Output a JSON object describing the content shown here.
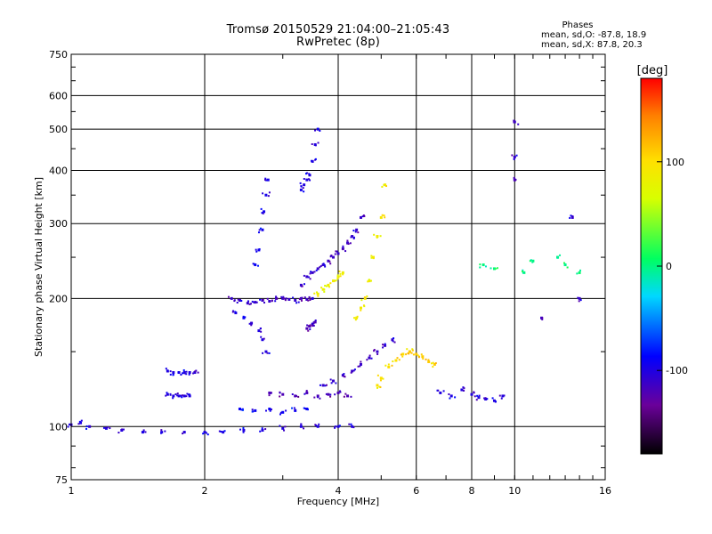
{
  "header": {
    "title": "Tromsø 20150529 21:04:00–21:05:43",
    "subtitle": "RwPretec (8p)"
  },
  "phases": {
    "heading": "Phases",
    "line_o": "mean, sd,O: -87.8, 18.9",
    "line_x": "mean, sd,X:  87.8, 20.3"
  },
  "colorbar": {
    "label": "[deg]",
    "ticks": [
      {
        "value": 100,
        "label": "100"
      },
      {
        "value": 0,
        "label": "0"
      },
      {
        "value": -100,
        "label": "-100"
      }
    ],
    "range": [
      -180,
      180
    ]
  },
  "chart_data": {
    "type": "scatter",
    "title": "Tromsø 20150529 21:04:00–21:05:43",
    "subtitle": "RwPretec (8p)",
    "xlabel": "Frequency [MHz]",
    "ylabel": "Stationary phase Virtual Height [km]",
    "xscale": "log",
    "yscale": "log",
    "xlim": [
      1,
      16
    ],
    "ylim": [
      75,
      750
    ],
    "xticks": [
      1,
      2,
      4,
      6,
      8,
      10,
      16
    ],
    "xtick_labels": [
      "1",
      "2",
      "4",
      "6",
      "8",
      "10",
      "16"
    ],
    "yticks": [
      75,
      100,
      200,
      300,
      400,
      500,
      600,
      750
    ],
    "ytick_labels": [
      "75",
      "100",
      "200",
      "300",
      "400",
      "500",
      "600",
      "750"
    ],
    "grid": true,
    "color_scale": "phase [deg]",
    "color_range": [
      -180,
      180
    ],
    "traces": [
      {
        "role": "E-layer base",
        "x": [
          1.0,
          1.05,
          1.1,
          1.2,
          1.3,
          1.45,
          1.6,
          1.8,
          2.0,
          2.2,
          2.45,
          2.7,
          3.0,
          3.3,
          3.6,
          4.0,
          4.3
        ],
        "y": [
          101,
          102,
          100,
          99,
          98,
          97,
          97,
          97,
          97,
          97,
          98,
          98,
          99,
          100,
          100,
          100,
          100
        ],
        "phase": -100
      },
      {
        "role": "sporadic",
        "x": [
          1.65,
          1.7,
          1.75,
          1.8,
          1.85,
          1.9
        ],
        "y": [
          135,
          134,
          134,
          134,
          134,
          134
        ],
        "phase": -100
      },
      {
        "role": "sporadic",
        "x": [
          1.65,
          1.7,
          1.75,
          1.8,
          1.85
        ],
        "y": [
          119,
          118,
          118,
          118,
          118
        ],
        "phase": -100
      },
      {
        "role": "F1 O-trace",
        "x": [
          2.3,
          2.4,
          2.5,
          2.6,
          2.7,
          2.8,
          2.9,
          3.0,
          3.1,
          3.2,
          3.3,
          3.4,
          3.5
        ],
        "y": [
          200,
          198,
          195,
          196,
          198,
          197,
          200,
          200,
          199,
          198,
          200,
          199,
          200
        ],
        "phase": -110
      },
      {
        "role": "F1 O-trace",
        "x": [
          2.35,
          2.45,
          2.55,
          2.65,
          2.7,
          2.75
        ],
        "y": [
          185,
          180,
          175,
          168,
          160,
          150
        ],
        "phase": -100
      },
      {
        "role": "F2 O-trace",
        "x": [
          2.6,
          2.65,
          2.7,
          2.72,
          2.75,
          2.78
        ],
        "y": [
          240,
          260,
          290,
          320,
          350,
          380
        ],
        "phase": -95
      },
      {
        "role": "F2 O-trace",
        "x": [
          3.3,
          3.4,
          3.5,
          3.6,
          3.7,
          3.8,
          3.9,
          4.0,
          4.1,
          4.2,
          4.3,
          4.4,
          4.5
        ],
        "y": [
          215,
          225,
          230,
          235,
          240,
          245,
          250,
          255,
          262,
          270,
          280,
          290,
          310
        ],
        "phase": -110
      },
      {
        "role": "F2 O-trace",
        "x": [
          3.3,
          3.35,
          3.4,
          3.45,
          3.5,
          3.55,
          3.6
        ],
        "y": [
          360,
          370,
          380,
          390,
          420,
          460,
          500
        ],
        "phase": -100
      },
      {
        "role": "F2 O-trace",
        "x": [
          3.4,
          3.45,
          3.5,
          3.55
        ],
        "y": [
          170,
          172,
          174,
          176
        ],
        "phase": -120
      },
      {
        "role": "F2 X-trace",
        "x": [
          4.4,
          4.5,
          4.6,
          4.7,
          4.8,
          4.9,
          5.0,
          5.1
        ],
        "y": [
          180,
          190,
          200,
          220,
          250,
          280,
          310,
          370
        ],
        "phase": 90
      },
      {
        "role": "F2 X-trace",
        "x": [
          3.6,
          3.7,
          3.8,
          3.9,
          4.0,
          4.1
        ],
        "y": [
          205,
          210,
          215,
          220,
          225,
          230
        ],
        "phase": 85
      },
      {
        "role": "F2 X-trace",
        "x": [
          4.9,
          5.0,
          5.2,
          5.4,
          5.6,
          5.8
        ],
        "y": [
          125,
          130,
          138,
          143,
          148,
          150
        ],
        "phase": 100
      },
      {
        "role": "F2 X-trace",
        "x": [
          5.8,
          6.0,
          6.2,
          6.4,
          6.6
        ],
        "y": [
          150,
          148,
          146,
          142,
          140
        ],
        "phase": 110
      },
      {
        "role": "multi-hop",
        "x": [
          3.7,
          3.9,
          4.1,
          4.3,
          4.5,
          4.7,
          4.9,
          5.1,
          5.3
        ],
        "y": [
          125,
          128,
          132,
          135,
          140,
          145,
          150,
          155,
          160
        ],
        "phase": -110
      },
      {
        "role": "multi-hop",
        "x": [
          2.8,
          3.0,
          3.2,
          3.4,
          3.6,
          3.8,
          4.0,
          4.2
        ],
        "y": [
          120,
          119,
          118,
          120,
          118,
          119,
          120,
          118
        ],
        "phase": -120
      },
      {
        "role": "multi-hop",
        "x": [
          2.4,
          2.6,
          2.8,
          3.0,
          3.2,
          3.4
        ],
        "y": [
          110,
          109,
          110,
          108,
          109,
          110
        ],
        "phase": -90
      },
      {
        "role": "scattered",
        "x": [
          6.8,
          7.2,
          7.6,
          8.0,
          8.3,
          8.6,
          9.0,
          9.4
        ],
        "y": [
          120,
          118,
          122,
          119,
          117,
          116,
          115,
          118
        ],
        "phase": -100
      },
      {
        "role": "scattered",
        "x": [
          8.5,
          9.0,
          10.5,
          11.0,
          12.5,
          13.0,
          14.0
        ],
        "y": [
          240,
          235,
          230,
          245,
          250,
          240,
          230
        ],
        "phase": 0
      },
      {
        "role": "scattered",
        "x": [
          10.0,
          10.0,
          10.0,
          11.5,
          13.5,
          14.0
        ],
        "y": [
          430,
          380,
          520,
          180,
          310,
          200
        ],
        "phase": -110
      }
    ]
  }
}
